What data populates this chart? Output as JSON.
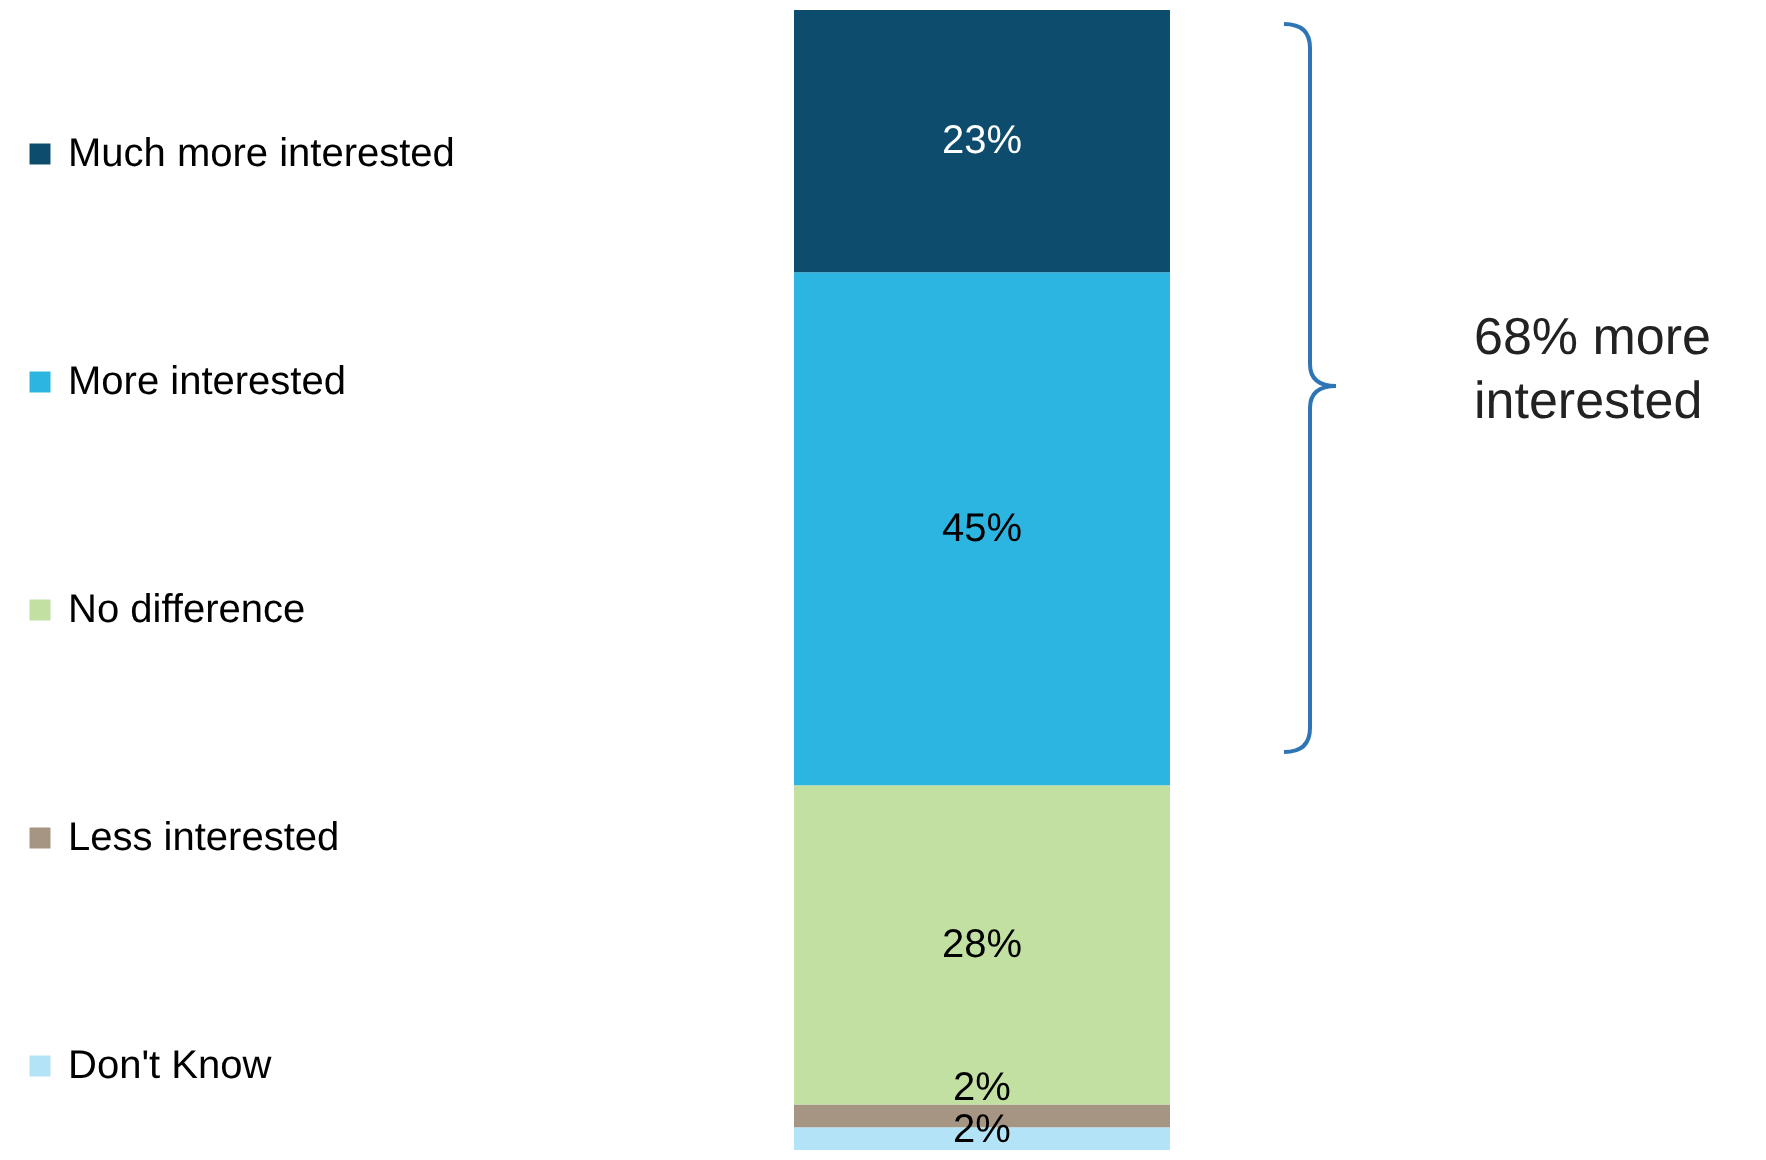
{
  "chart_data": {
    "type": "bar",
    "stacked": true,
    "categories": [
      null
    ],
    "legend": "left",
    "data_labels": true,
    "annotations": [
      "68% more interested"
    ],
    "series": [
      {
        "name": "Don't Know",
        "color": "#b3e3f6",
        "values": [
          2
        ],
        "value_labels": [
          "2%"
        ]
      },
      {
        "name": "Less interested",
        "color": "#a59582",
        "values": [
          2
        ],
        "value_labels": [
          "2%"
        ]
      },
      {
        "name": "No difference",
        "color": "#c2e0a2",
        "values": [
          28
        ],
        "value_labels": [
          "28%"
        ]
      },
      {
        "name": "More interested",
        "color": "#2db5e1",
        "values": [
          45
        ],
        "value_labels": [
          "45%"
        ]
      },
      {
        "name": "Much more interested",
        "color": "#0e4c6e",
        "values": [
          23
        ],
        "value_labels": [
          "23%"
        ]
      }
    ]
  }
}
